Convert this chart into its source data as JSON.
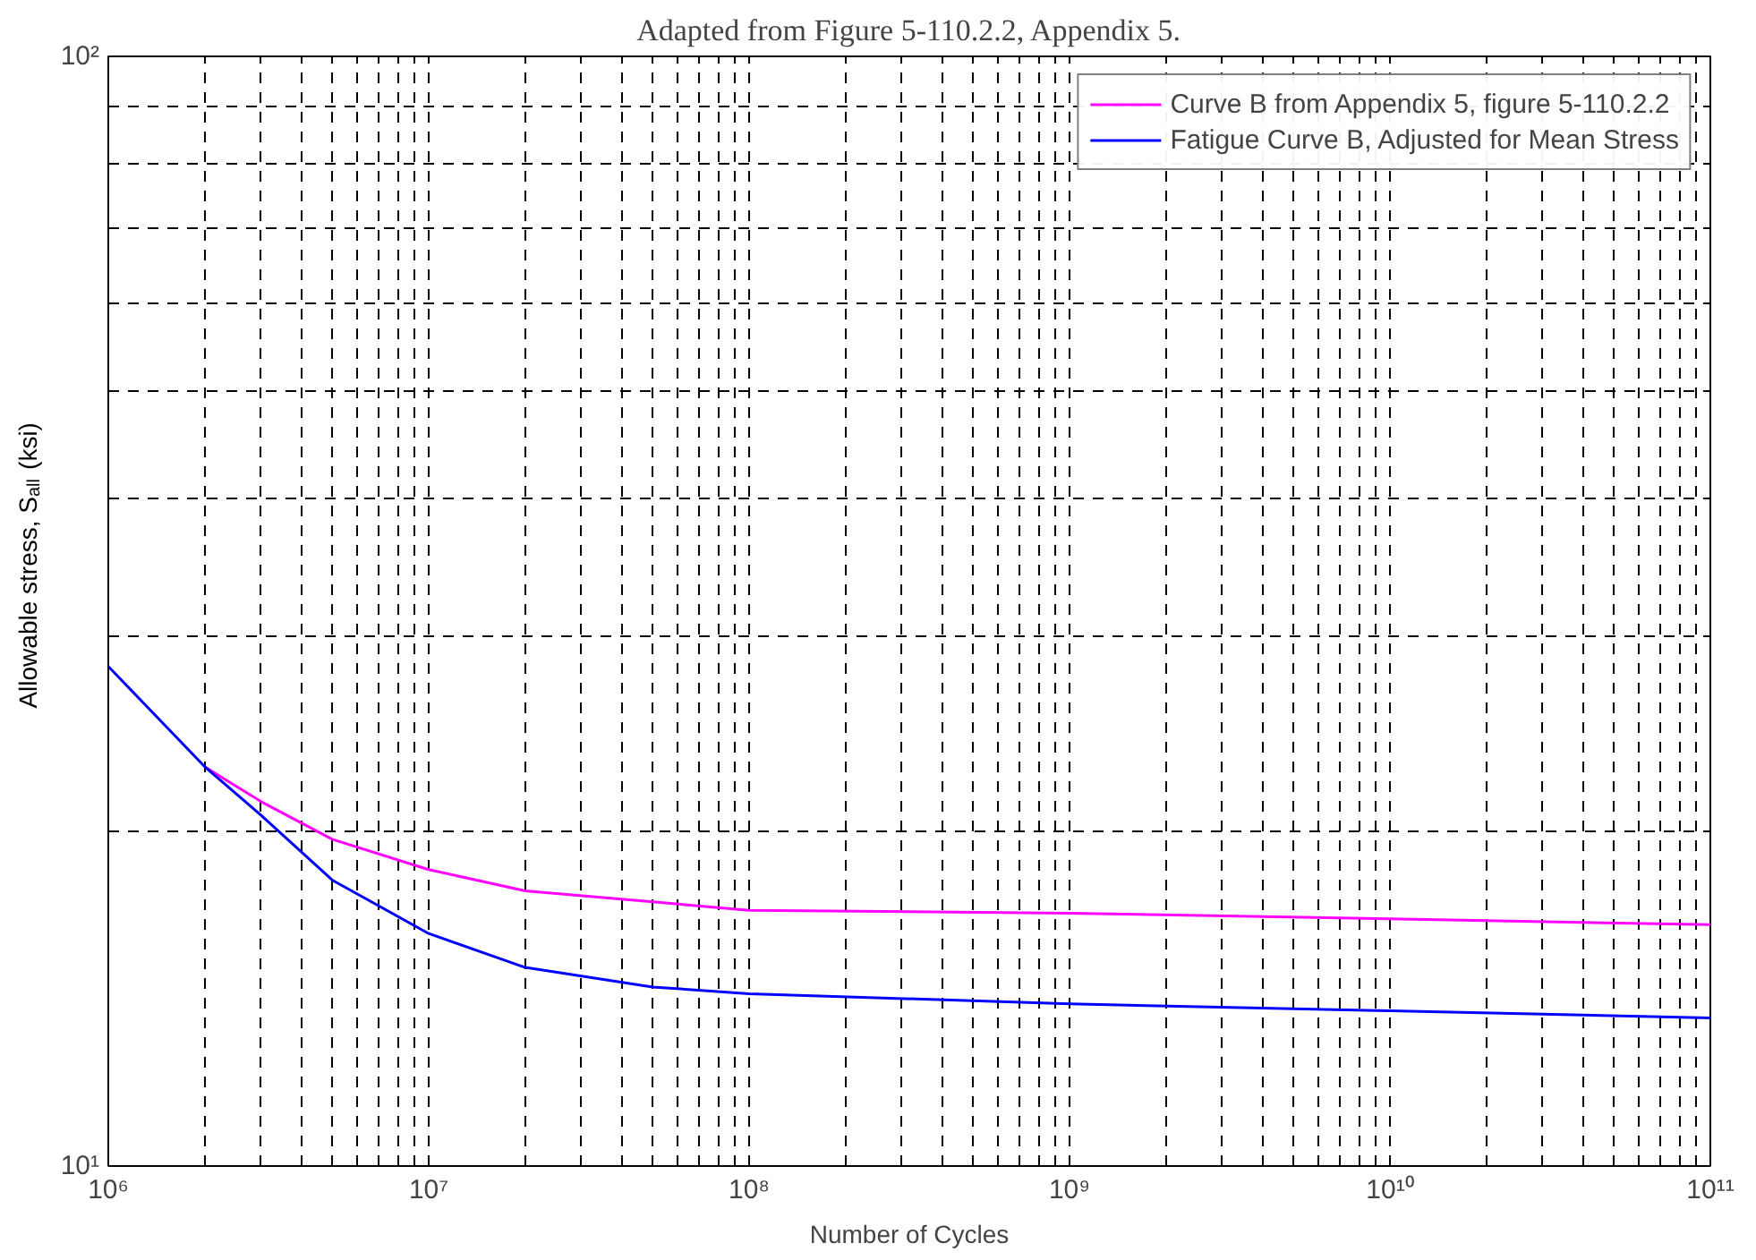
{
  "chart_data": {
    "type": "line",
    "title": "Adapted from Figure 5-110.2.2, Appendix 5.",
    "xlabel": "Number of Cycles",
    "ylabel": "Allowable stress, S$_{all}$ (ksi)",
    "log": "xy",
    "grid": true,
    "legend": "top right",
    "line_style": "solid",
    "xlim": [
      1000000,
      100000000000
    ],
    "ylim": [
      10,
      100
    ],
    "xticks": [
      {
        "value": 1000000,
        "label": "10⁶"
      },
      {
        "value": 10000000,
        "label": "10⁷"
      },
      {
        "value": 100000000,
        "label": "10⁸"
      },
      {
        "value": 1000000000,
        "label": "10⁹"
      },
      {
        "value": 10000000000,
        "label": "10¹⁰"
      },
      {
        "value": 100000000000,
        "label": "10¹¹"
      }
    ],
    "yticks": [
      {
        "value": 10,
        "label": "10¹"
      },
      {
        "value": 100,
        "label": "10²"
      }
    ],
    "series": [
      {
        "name": "Curve B from Appendix 5, figure 5-110.2.2",
        "color": "#ff00ff",
        "x": [
          2000000,
          3000000,
          5000000,
          10000000,
          20000000,
          50000000,
          100000000,
          1000000000,
          10000000000,
          100000000000
        ],
        "values": [
          22.9,
          21.3,
          19.7,
          18.5,
          17.7,
          17.3,
          17.0,
          16.9,
          16.7,
          16.5
        ]
      },
      {
        "name": "Fatigue Curve B, Adjusted for Mean Stress",
        "color": "#0000ff",
        "x": [
          1000000,
          2000000,
          3000000,
          5000000,
          10000000,
          20000000,
          50000000,
          100000000,
          1000000000,
          10000000000,
          100000000000
        ],
        "values": [
          28.2,
          22.9,
          20.7,
          18.1,
          16.2,
          15.1,
          14.5,
          14.3,
          14.0,
          13.8,
          13.6
        ]
      }
    ]
  }
}
